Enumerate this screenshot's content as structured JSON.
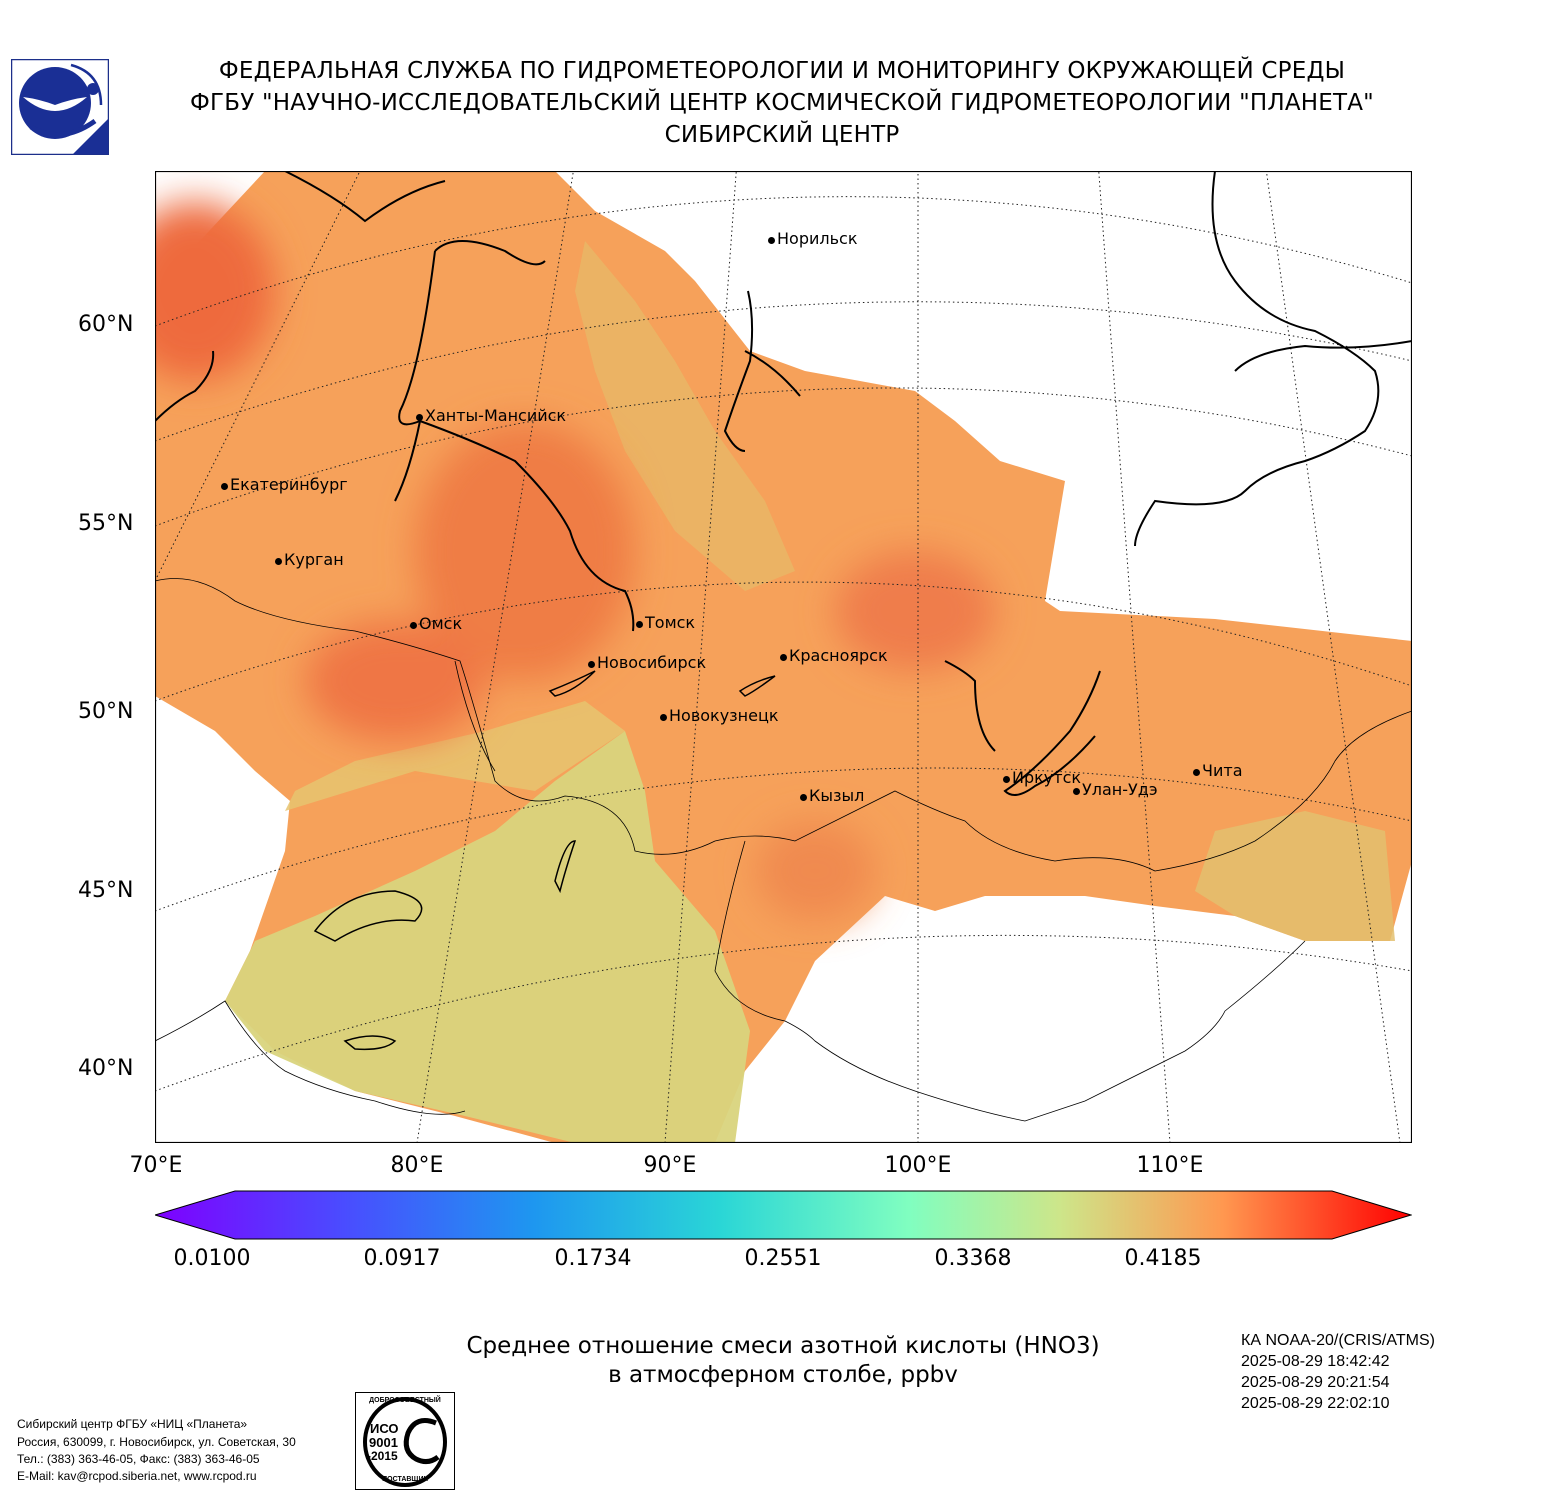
{
  "header": {
    "line1": "ФЕДЕРАЛЬНАЯ СЛУЖБА ПО ГИДРОМЕТЕОРОЛОГИИ И МОНИТОРИНГУ ОКРУЖАЮЩЕЙ СРЕДЫ",
    "line2": "ФГБУ \"НАУЧНО-ИССЛЕДОВАТЕЛЬСКИЙ ЦЕНТР КОСМИЧЕСКОЙ ГИДРОМЕТЕОРОЛОГИИ \"ПЛАНЕТА\"",
    "line3": "СИБИРСКИЙ ЦЕНТР"
  },
  "map": {
    "lat_labels": [
      "60°N",
      "55°N",
      "50°N",
      "45°N",
      "40°N"
    ],
    "lon_labels": [
      "70°E",
      "80°E",
      "90°E",
      "100°E",
      "110°E"
    ],
    "cities": [
      {
        "name": "Норильск"
      },
      {
        "name": "Ханты-Мансийск"
      },
      {
        "name": "Екатеринбург"
      },
      {
        "name": "Курган"
      },
      {
        "name": "Омск"
      },
      {
        "name": "Томск"
      },
      {
        "name": "Новосибирск"
      },
      {
        "name": "Красноярск"
      },
      {
        "name": "Новокузнецк"
      },
      {
        "name": "Кызыл"
      },
      {
        "name": "Иркутск"
      },
      {
        "name": "Улан-Удэ"
      },
      {
        "name": "Чита"
      }
    ]
  },
  "colorbar": {
    "min": 0.01,
    "max": 0.5,
    "tick_labels": [
      "0.0100",
      "0.0917",
      "0.1734",
      "0.2551",
      "0.3368",
      "0.4185"
    ],
    "colormap": "rainbow",
    "extend": "both"
  },
  "caption": {
    "line1": "Среднее отношение смеси азотной кислоты (HNO3)",
    "line2": "в атмосферном столбе, ppbv"
  },
  "satellite": {
    "name": "КА NOAA-20/(CRIS/ATMS)",
    "times": [
      "2025-08-29 18:42:42",
      "2025-08-29 20:21:54",
      "2025-08-29 22:02:10"
    ]
  },
  "footer": {
    "org": "Сибирский центр ФГБУ «НИЦ «Планета»",
    "address": "Россия, 630099, г. Новосибирск, ул. Советская, 30",
    "phone": "Тел.: (383) 363-46-05, Факс: (383) 363-46-05",
    "email": "E-Mail: kav@rcpod.siberia.net, www.rcpod.ru",
    "iso_stamp": {
      "top": "ДОБРОСОВЕСТНЫЙ",
      "l1": "ИСО",
      "l2": "9001",
      "l3": "-2015",
      "bottom": "ПОСТАВЩИК"
    }
  }
}
